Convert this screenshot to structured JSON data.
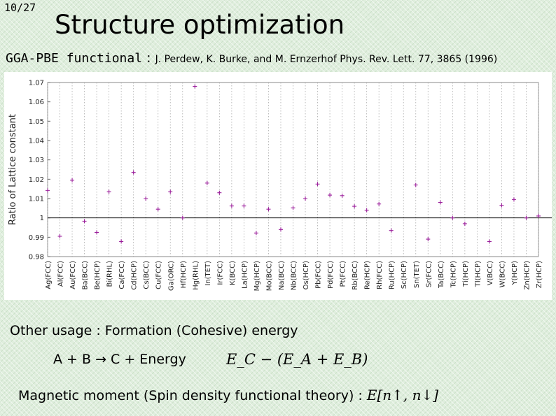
{
  "slide": {
    "number": "10/27",
    "title": "Structure optimization",
    "functional_name": "GGA-PBE functional",
    "functional_colon": " : ",
    "functional_reference": "J. Perdew, K. Burke, and M. Ernzerhof Phys. Rev. Lett. 77, 3865 (1996)",
    "other_usage": "Other usage : Formation (Cohesive) energy",
    "reaction": "A + B → C + Energy",
    "energy_equation": "E_C − (E_A + E_B)",
    "magnetic_text": "Magnetic moment (Spin density functional theory) : ",
    "magnetic_math": "E[n↑, n↓]"
  },
  "colors": {
    "marker": "#9b1f9b",
    "background": "#dfeedd",
    "reference_line": "#000000"
  },
  "chart_data": {
    "type": "scatter",
    "ylabel": "Ratio of Lattice constant",
    "ylim": [
      0.98,
      1.07
    ],
    "yticks": [
      {
        "v": 0.98,
        "label": "0.98"
      },
      {
        "v": 0.99,
        "label": "0.99"
      },
      {
        "v": 1.0,
        "label": "1"
      },
      {
        "v": 1.01,
        "label": "1.01"
      },
      {
        "v": 1.02,
        "label": "1.02"
      },
      {
        "v": 1.03,
        "label": "1.03"
      },
      {
        "v": 1.04,
        "label": "1.04"
      },
      {
        "v": 1.05,
        "label": "1.05"
      },
      {
        "v": 1.06,
        "label": "1.06"
      },
      {
        "v": 1.07,
        "label": "1.07"
      }
    ],
    "reference_line": 1.0,
    "x_grid": "dotted vertical lines",
    "categories": [
      "Ag(FCC)",
      "Al(FCC)",
      "Au(FCC)",
      "Ba(BCC)",
      "Be(HCP)",
      "Bi(RHL)",
      "Ca(FCC)",
      "Cd(HCP)",
      "Cs(BCC)",
      "Cu(FCC)",
      "Ga(ORC)",
      "Hf(HCP)",
      "Hg(RHL)",
      "In(TET)",
      "Ir(FCC)",
      "K(BCC)",
      "La(HCP)",
      "Mg(HCP)",
      "Mo(BCC)",
      "Na(BCC)",
      "Nb(BCC)",
      "Os(HCP)",
      "Pb(FCC)",
      "Pd(FCC)",
      "Pt(FCC)",
      "Rb(BCC)",
      "Re(HCP)",
      "Rh(FCC)",
      "Ru(HCP)",
      "Sc(HCP)",
      "Sn(TET)",
      "Sr(FCC)",
      "Ta(BCC)",
      "Tc(HCP)",
      "Ti(HCP)",
      "Tl(HCP)",
      "V(BCC)",
      "W(BCC)",
      "Y(HCP)",
      "Zn(HCP)",
      "Zr(HCP)"
    ],
    "series": [
      {
        "points": [
          [
            0,
            1.0142
          ],
          [
            1,
            0.9905
          ],
          [
            2,
            1.0195
          ],
          [
            3,
            0.9983
          ],
          [
            4,
            0.9925
          ],
          [
            5,
            1.0135
          ],
          [
            6,
            0.9878
          ],
          [
            7,
            1.0235
          ],
          [
            8,
            1.01
          ],
          [
            9,
            1.0045
          ],
          [
            10,
            1.0135
          ],
          [
            11,
            1.0
          ],
          [
            12,
            1.068
          ],
          [
            13,
            1.018
          ],
          [
            14,
            1.013
          ],
          [
            15,
            1.0062
          ],
          [
            16,
            1.0062
          ],
          [
            17,
            0.9922
          ],
          [
            18,
            1.0045
          ],
          [
            19,
            0.994
          ],
          [
            20,
            1.0052
          ],
          [
            21,
            1.01
          ],
          [
            22,
            1.0175
          ],
          [
            23,
            1.0118
          ],
          [
            24,
            1.0115
          ],
          [
            25,
            1.006
          ],
          [
            26,
            1.004
          ],
          [
            27,
            1.0072
          ],
          [
            28,
            0.9935
          ],
          [
            30,
            1.017
          ],
          [
            31,
            0.989
          ],
          [
            32,
            1.008
          ],
          [
            33,
            1.0
          ],
          [
            34,
            0.997
          ],
          [
            36,
            0.9878
          ],
          [
            37,
            1.0065
          ],
          [
            38,
            1.0095
          ],
          [
            39,
            1.0
          ],
          [
            40,
            1.001
          ]
        ]
      }
    ]
  }
}
